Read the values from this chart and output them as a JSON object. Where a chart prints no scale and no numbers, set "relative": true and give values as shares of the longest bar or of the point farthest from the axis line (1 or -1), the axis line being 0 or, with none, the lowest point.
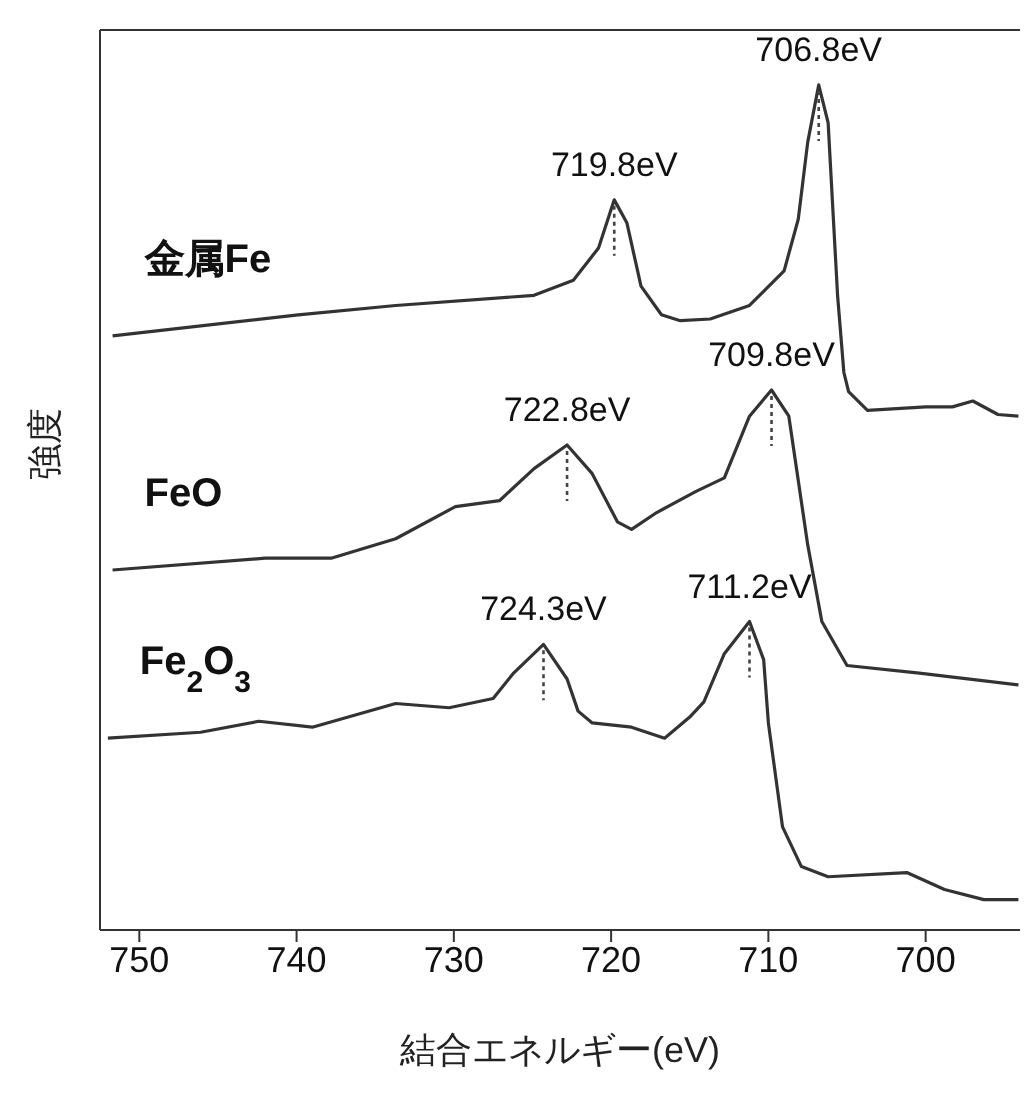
{
  "chart_data": {
    "type": "line",
    "relative": true,
    "xlabel": "結合エネルギー(eV)",
    "ylabel": "強度",
    "xlim": [
      752.5,
      694
    ],
    "xticks": [
      750,
      740,
      730,
      720,
      710,
      700
    ],
    "marker": "none",
    "line_style": "solid",
    "series": [
      {
        "name": "金属Fe",
        "color": "#333333",
        "x": [
          751.7,
          739.9,
          733.7,
          724.9,
          722.4,
          720.8,
          719.8,
          719.0,
          718.1,
          716.8,
          715.6,
          713.7,
          711.2,
          709.0,
          708.1,
          707.5,
          706.8,
          706.2,
          705.6,
          705.2,
          704.9,
          703.7,
          700.0,
          698.3,
          697.0,
          695.4,
          694.1
        ],
        "values": [
          0.703,
          0.728,
          0.739,
          0.751,
          0.769,
          0.807,
          0.864,
          0.837,
          0.762,
          0.728,
          0.721,
          0.723,
          0.739,
          0.78,
          0.841,
          0.932,
          1.0,
          0.955,
          0.751,
          0.66,
          0.637,
          0.615,
          0.619,
          0.619,
          0.626,
          0.61,
          0.608
        ]
      },
      {
        "name": "FeO",
        "color": "#333333",
        "x": [
          751.7,
          742.0,
          737.8,
          733.7,
          729.9,
          727.1,
          724.9,
          722.8,
          721.2,
          719.6,
          718.7,
          717.1,
          714.6,
          712.8,
          711.2,
          709.8,
          708.7,
          707.5,
          706.6,
          705.0,
          700.4,
          694.1
        ],
        "values": [
          0.426,
          0.44,
          0.44,
          0.463,
          0.501,
          0.508,
          0.546,
          0.574,
          0.54,
          0.483,
          0.474,
          0.494,
          0.519,
          0.535,
          0.608,
          0.639,
          0.608,
          0.456,
          0.365,
          0.313,
          0.304,
          0.29
        ]
      },
      {
        "name": "Fe$_{2}$O$_{3}$",
        "color": "#333333",
        "x": [
          752.0,
          746.1,
          742.4,
          739.0,
          733.7,
          730.3,
          727.5,
          726.2,
          724.3,
          722.8,
          722.1,
          721.2,
          718.7,
          716.6,
          715.0,
          714.1,
          712.8,
          711.2,
          710.3,
          710.0,
          709.1,
          707.9,
          706.2,
          701.2,
          698.8,
          696.3,
          694.1
        ],
        "values": [
          0.227,
          0.234,
          0.247,
          0.24,
          0.268,
          0.263,
          0.274,
          0.304,
          0.338,
          0.297,
          0.259,
          0.245,
          0.24,
          0.227,
          0.252,
          0.27,
          0.327,
          0.365,
          0.32,
          0.245,
          0.122,
          0.075,
          0.063,
          0.068,
          0.048,
          0.036,
          0.036
        ]
      }
    ],
    "annotations": [
      {
        "text": "706.8eV",
        "x": 706.8,
        "y": 1.0
      },
      {
        "text": "719.8eV",
        "x": 719.8,
        "y": 0.864
      },
      {
        "text": "709.8eV",
        "x": 709.8,
        "y": 0.639
      },
      {
        "text": "722.8eV",
        "x": 722.8,
        "y": 0.574
      },
      {
        "text": "711.2eV",
        "x": 711.2,
        "y": 0.365
      },
      {
        "text": "724.3eV",
        "x": 724.3,
        "y": 0.338
      }
    ]
  }
}
